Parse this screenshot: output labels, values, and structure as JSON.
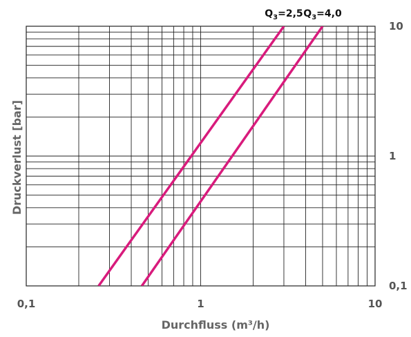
{
  "chart_data": {
    "type": "line",
    "xlabel": "Durchfluss (m³/h)",
    "ylabel": "Druckverlust [bar]",
    "x_scale": "log",
    "y_scale": "log",
    "xlim": [
      0.1,
      10
    ],
    "ylim": [
      0.1,
      10
    ],
    "x_ticks": [
      "0,1",
      "1",
      "10"
    ],
    "y_ticks": [
      "0,1",
      "1",
      "10"
    ],
    "grid": true,
    "line_color": "#d81b7c",
    "series": [
      {
        "name": "Q3=2,5",
        "label_main": "Q",
        "label_sub": "3",
        "label_rest": "=2,5",
        "x": [
          0.26,
          3.0
        ],
        "y": [
          0.1,
          10
        ]
      },
      {
        "name": "Q3=4,0",
        "label_main": "Q",
        "label_sub": "3",
        "label_rest": "=4,0",
        "x": [
          0.46,
          5.0
        ],
        "y": [
          0.1,
          10
        ]
      }
    ]
  }
}
